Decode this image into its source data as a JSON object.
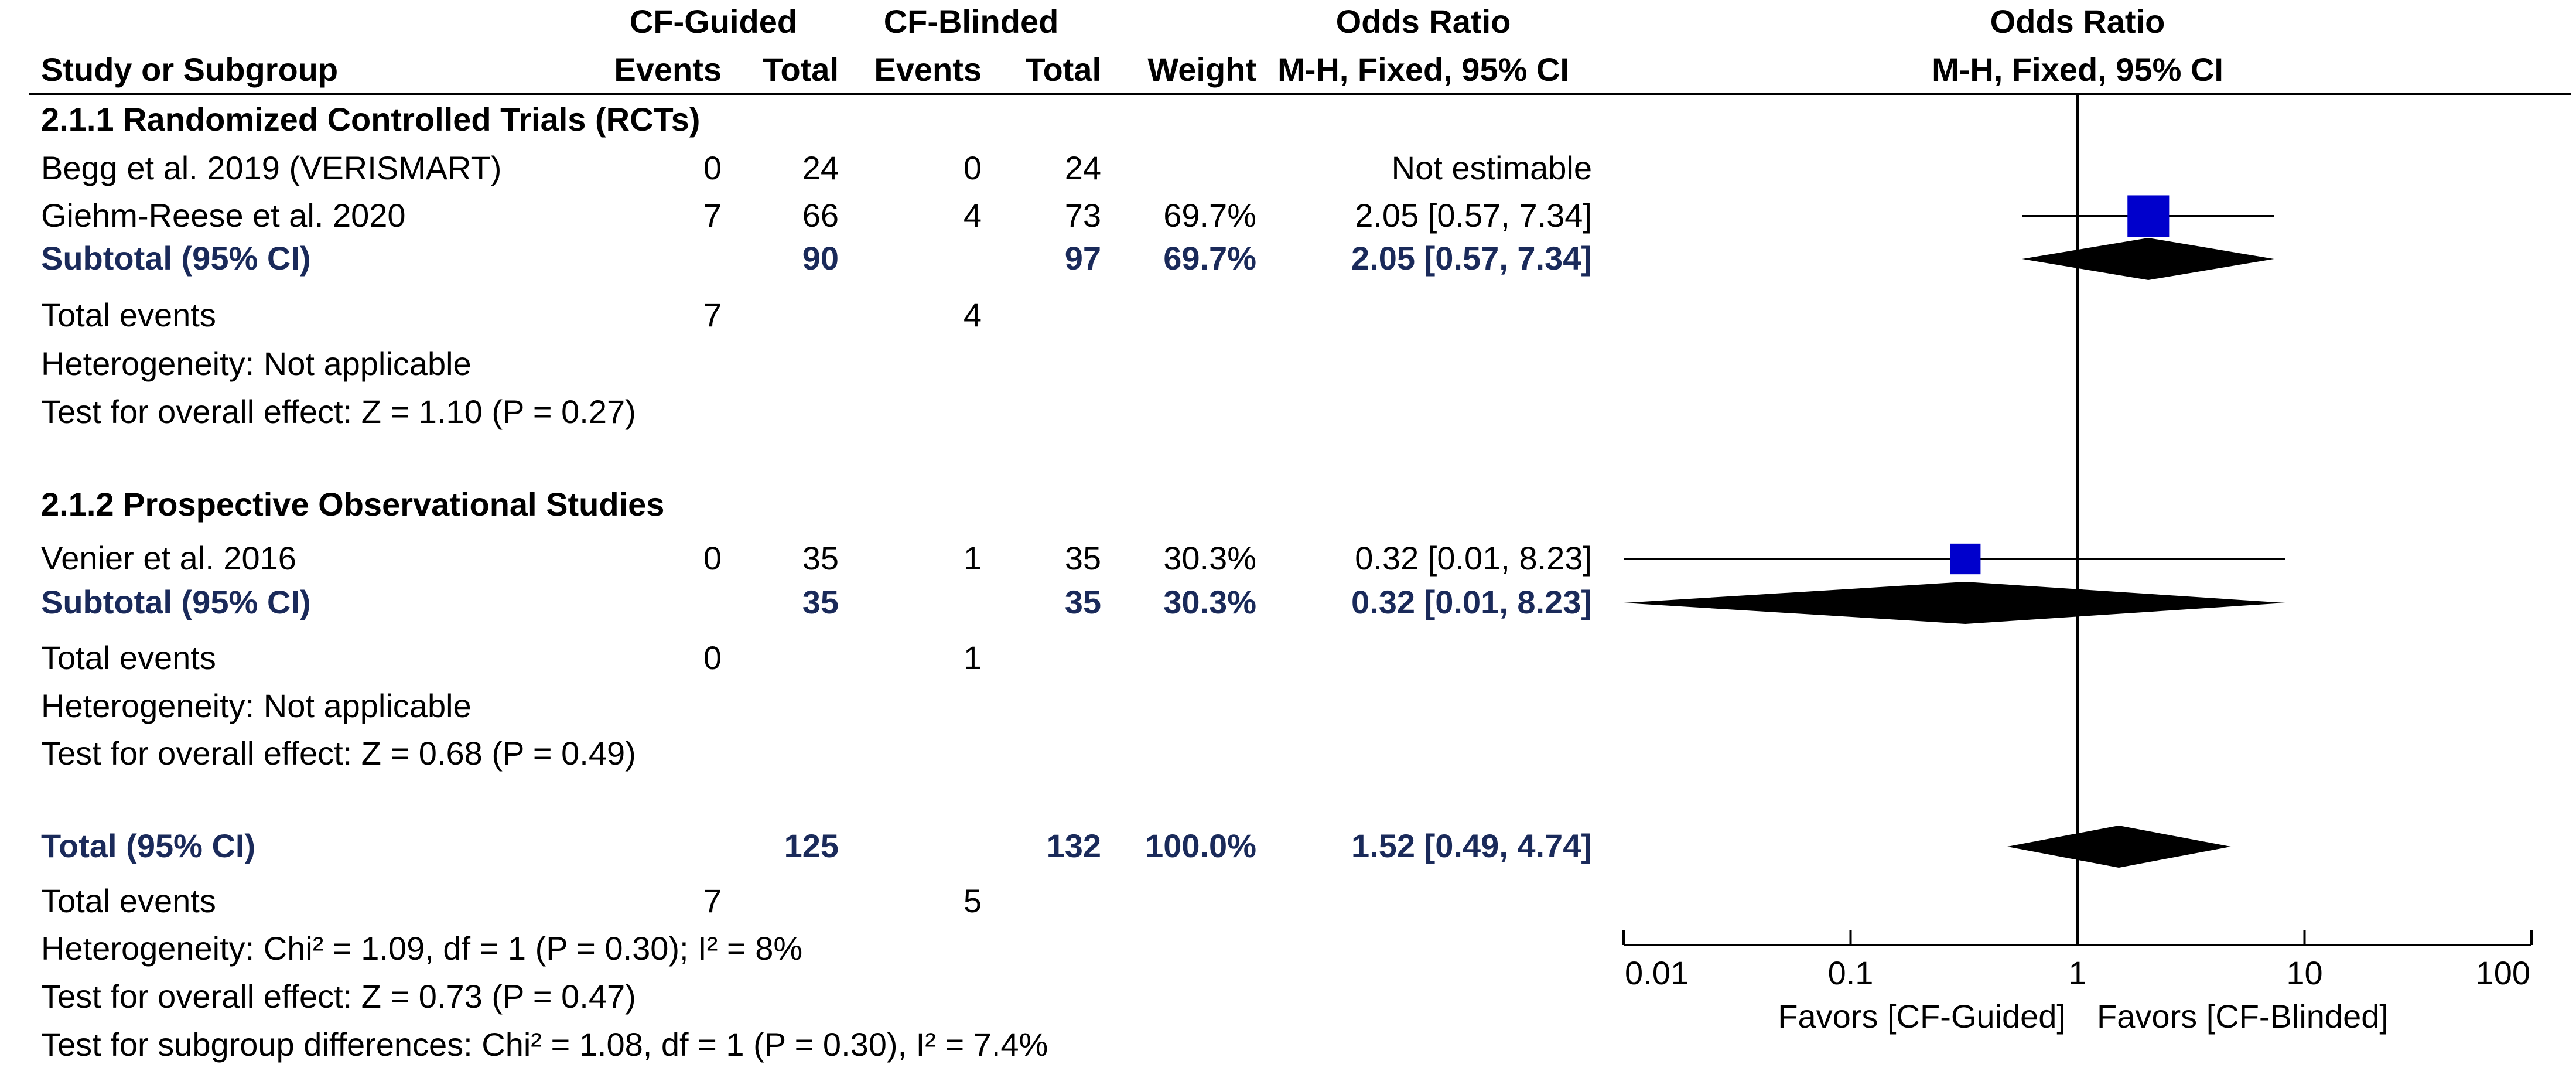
{
  "headers": {
    "study": "Study or Subgroup",
    "group1": "CF-Guided",
    "group2": "CF-Blinded",
    "events": "Events",
    "total": "Total",
    "weight": "Weight",
    "or_title": "Odds Ratio",
    "or_method": "M-H, Fixed, 95% CI",
    "plot_title": "Odds Ratio",
    "plot_method": "M-H, Fixed, 95% CI"
  },
  "rows": [
    {
      "kind": "section",
      "label": "2.1.1 Randomized Controlled Trials (RCTs)"
    },
    {
      "kind": "study",
      "label": "Begg et al. 2019 (VERISMART)",
      "e1": "0",
      "t1": "24",
      "e2": "0",
      "t2": "24",
      "weight": "",
      "ci": "Not estimable"
    },
    {
      "kind": "study",
      "label": "Giehm-Reese et al. 2020",
      "e1": "7",
      "t1": "66",
      "e2": "4",
      "t2": "73",
      "weight": "69.7%",
      "ci": "2.05 [0.57, 7.34]"
    },
    {
      "kind": "subtotal",
      "label": "Subtotal (95% CI)",
      "t1": "90",
      "t2": "97",
      "weight": "69.7%",
      "ci": "2.05 [0.57, 7.34]"
    },
    {
      "kind": "events",
      "label": "Total events",
      "e1": "7",
      "e2": "4"
    },
    {
      "kind": "text",
      "label": "Heterogeneity: Not applicable"
    },
    {
      "kind": "text",
      "label": "Test for overall effect: Z = 1.10 (P = 0.27)"
    },
    {
      "kind": "section",
      "label": "2.1.2 Prospective Observational Studies"
    },
    {
      "kind": "study",
      "label": "Venier et al. 2016",
      "e1": "0",
      "t1": "35",
      "e2": "1",
      "t2": "35",
      "weight": "30.3%",
      "ci": "0.32 [0.01, 8.23]"
    },
    {
      "kind": "subtotal",
      "label": "Subtotal (95% CI)",
      "t1": "35",
      "t2": "35",
      "weight": "30.3%",
      "ci": "0.32 [0.01, 8.23]"
    },
    {
      "kind": "events",
      "label": "Total events",
      "e1": "0",
      "e2": "1"
    },
    {
      "kind": "text",
      "label": "Heterogeneity: Not applicable"
    },
    {
      "kind": "text",
      "label": "Test for overall effect: Z = 0.68 (P = 0.49)"
    },
    {
      "kind": "total",
      "label": "Total (95% CI)",
      "t1": "125",
      "t2": "132",
      "weight": "100.0%",
      "ci": "1.52 [0.49, 4.74]"
    },
    {
      "kind": "events",
      "label": "Total events",
      "e1": "7",
      "e2": "5"
    },
    {
      "kind": "text",
      "label": "Heterogeneity: Chi² = 1.09, df = 1 (P = 0.30); I² = 8%"
    },
    {
      "kind": "text",
      "label": "Test for overall effect: Z = 0.73 (P = 0.47)"
    },
    {
      "kind": "text",
      "label": "Test for subgroup differences: Chi² = 1.08, df = 1 (P = 0.30), I² = 7.4%"
    }
  ],
  "colors": {
    "square": "#0000cc",
    "diamond": "#000000",
    "line": "#000000",
    "subtotal_text": "#1a2a5a"
  },
  "chart_data": {
    "type": "forest",
    "title": "Odds Ratio",
    "subtitle": "M-H, Fixed, 95% CI",
    "x_scale": "log",
    "xlim": [
      0.01,
      100
    ],
    "x_ticks": [
      0.01,
      0.1,
      1,
      10,
      100
    ],
    "x_tick_labels": [
      "0.01",
      "0.1",
      "1",
      "10",
      "100"
    ],
    "favors_left": "Favors [CF-Guided]",
    "favors_right": "Favors [CF-Blinded]",
    "studies": [
      {
        "label": "Giehm-Reese et al. 2020",
        "or": 2.05,
        "lo": 0.57,
        "hi": 7.34,
        "weight": 69.7,
        "row": 2
      },
      {
        "label": "Venier et al. 2016",
        "or": 0.32,
        "lo": 0.01,
        "hi": 8.23,
        "weight": 30.3,
        "row": 8
      }
    ],
    "diamonds": [
      {
        "label": "Subtotal (95% CI)",
        "or": 2.05,
        "lo": 0.57,
        "hi": 7.34,
        "row": 3
      },
      {
        "label": "Subtotal (95% CI)",
        "or": 0.32,
        "lo": 0.01,
        "hi": 8.23,
        "row": 9
      },
      {
        "label": "Total (95% CI)",
        "or": 1.52,
        "lo": 0.49,
        "hi": 4.74,
        "row": 13
      }
    ]
  }
}
